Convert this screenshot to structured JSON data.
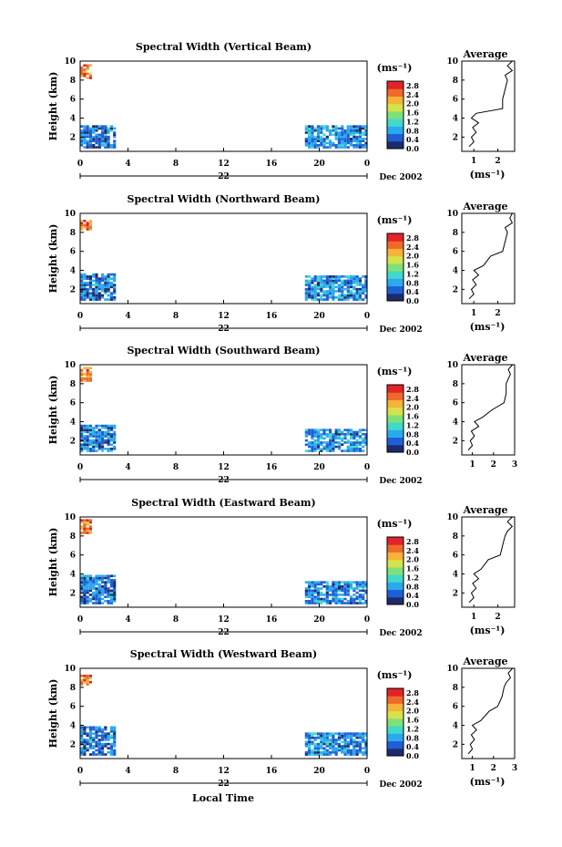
{
  "page": {
    "xlabel": "Local Time",
    "date_label": "Dec 2002",
    "day_label": "22",
    "ylabel": "Height (km)",
    "avg_title": "Average",
    "unit": "(ms⁻¹)"
  },
  "colorbar": {
    "ticks": [
      "2.8",
      "2.4",
      "2.0",
      "1.6",
      "1.2",
      "0.8",
      "0.4",
      "0.0"
    ],
    "colors": [
      "#1e2b6b",
      "#1f5fd6",
      "#2aa9ee",
      "#41d9c9",
      "#7fe07a",
      "#d6e24a",
      "#f5b33a",
      "#ef6a2a",
      "#e0242a"
    ]
  },
  "chart_data": [
    {
      "type": "heatmap",
      "title": "Spectral Width (Vertical Beam)",
      "xlabel": "Local Time",
      "ylabel": "Height (km)",
      "x_ticks": [
        "0",
        "4",
        "8",
        "12",
        "16",
        "20",
        "0"
      ],
      "y_ticks": [
        "2",
        "4",
        "6",
        "8",
        "10"
      ],
      "xlim": [
        0,
        24
      ],
      "ylim": [
        0.5,
        10
      ],
      "clim": [
        0.0,
        3.0
      ],
      "regions": [
        {
          "x": [
            0.0,
            3.0
          ],
          "y": [
            0.8,
            3.2
          ],
          "value": 0.6
        },
        {
          "x": [
            18.8,
            24.0
          ],
          "y": [
            0.8,
            3.2
          ],
          "value": 0.7
        },
        {
          "x": [
            0.0,
            0.8
          ],
          "y": [
            8.1,
            9.6
          ],
          "value": 2.4
        }
      ],
      "average": {
        "xlabel": "(ms⁻¹)",
        "x_ticks": [
          "1",
          "2"
        ],
        "xlim": [
          0.5,
          2.7
        ],
        "ylim": [
          0.5,
          10
        ],
        "profile": [
          [
            0.8,
            1
          ],
          [
            1.0,
            1.5
          ],
          [
            0.9,
            2
          ],
          [
            1.1,
            2.5
          ],
          [
            0.95,
            3
          ],
          [
            1.2,
            3.5
          ],
          [
            0.9,
            4
          ],
          [
            1.1,
            4.5
          ],
          [
            2.2,
            5
          ],
          [
            2.2,
            6
          ],
          [
            2.3,
            7
          ],
          [
            2.4,
            8
          ],
          [
            2.3,
            8.5
          ],
          [
            2.6,
            9
          ],
          [
            2.4,
            9.5
          ],
          [
            2.6,
            10
          ]
        ]
      }
    },
    {
      "type": "heatmap",
      "title": "Spectral Width (Northward Beam)",
      "xlabel": "Local Time",
      "ylabel": "Height (km)",
      "x_ticks": [
        "0",
        "4",
        "8",
        "12",
        "16",
        "20",
        "0"
      ],
      "y_ticks": [
        "2",
        "4",
        "6",
        "8",
        "10"
      ],
      "xlim": [
        0,
        24
      ],
      "ylim": [
        0.5,
        10
      ],
      "clim": [
        0.0,
        3.0
      ],
      "regions": [
        {
          "x": [
            0.0,
            3.0
          ],
          "y": [
            0.8,
            3.6
          ],
          "value": 0.6
        },
        {
          "x": [
            18.8,
            24.0
          ],
          "y": [
            0.8,
            3.4
          ],
          "value": 0.7
        },
        {
          "x": [
            0.0,
            0.9
          ],
          "y": [
            8.2,
            9.2
          ],
          "value": 2.4
        }
      ],
      "average": {
        "xlabel": "(ms⁻¹)",
        "x_ticks": [
          "1",
          "2"
        ],
        "xlim": [
          0.5,
          2.7
        ],
        "ylim": [
          0.5,
          10
        ],
        "profile": [
          [
            0.8,
            1
          ],
          [
            1.0,
            1.5
          ],
          [
            0.9,
            2
          ],
          [
            1.1,
            2.5
          ],
          [
            0.95,
            3
          ],
          [
            1.2,
            3.5
          ],
          [
            1.0,
            4
          ],
          [
            1.4,
            4.5
          ],
          [
            1.7,
            5.5
          ],
          [
            2.2,
            6
          ],
          [
            2.3,
            7
          ],
          [
            2.4,
            8
          ],
          [
            2.3,
            8.5
          ],
          [
            2.6,
            9
          ],
          [
            2.5,
            9.5
          ],
          [
            2.6,
            10
          ]
        ]
      }
    },
    {
      "type": "heatmap",
      "title": "Spectral Width (Southward Beam)",
      "xlabel": "Local Time",
      "ylabel": "Height (km)",
      "x_ticks": [
        "0",
        "4",
        "8",
        "12",
        "16",
        "20",
        "0"
      ],
      "y_ticks": [
        "2",
        "4",
        "6",
        "8",
        "10"
      ],
      "xlim": [
        0,
        24
      ],
      "ylim": [
        0.5,
        10
      ],
      "clim": [
        0.0,
        3.0
      ],
      "regions": [
        {
          "x": [
            0.0,
            3.0
          ],
          "y": [
            0.8,
            3.6
          ],
          "value": 0.6
        },
        {
          "x": [
            18.8,
            24.0
          ],
          "y": [
            0.8,
            3.2
          ],
          "value": 0.7
        },
        {
          "x": [
            0.0,
            0.8
          ],
          "y": [
            8.2,
            9.6
          ],
          "value": 2.4
        }
      ],
      "average": {
        "xlabel": "",
        "x_ticks": [
          "1",
          "2",
          "3"
        ],
        "xlim": [
          0.5,
          3.0
        ],
        "ylim": [
          0.5,
          10
        ],
        "profile": [
          [
            0.8,
            1
          ],
          [
            1.0,
            1.5
          ],
          [
            0.9,
            2
          ],
          [
            1.1,
            2.5
          ],
          [
            0.95,
            3
          ],
          [
            1.3,
            3.5
          ],
          [
            1.1,
            4
          ],
          [
            1.5,
            4.5
          ],
          [
            1.9,
            5.2
          ],
          [
            2.5,
            6
          ],
          [
            2.6,
            7
          ],
          [
            2.6,
            8
          ],
          [
            2.7,
            8.5
          ],
          [
            2.8,
            9
          ],
          [
            2.7,
            9.5
          ],
          [
            2.9,
            10
          ]
        ]
      }
    },
    {
      "type": "heatmap",
      "title": "Spectral Width (Eastward Beam)",
      "xlabel": "Local Time",
      "ylabel": "Height (km)",
      "x_ticks": [
        "0",
        "4",
        "8",
        "12",
        "16",
        "20",
        "0"
      ],
      "y_ticks": [
        "2",
        "4",
        "6",
        "8",
        "10"
      ],
      "xlim": [
        0,
        24
      ],
      "ylim": [
        0.5,
        10
      ],
      "clim": [
        0.0,
        3.0
      ],
      "regions": [
        {
          "x": [
            0.0,
            3.0
          ],
          "y": [
            0.8,
            3.8
          ],
          "value": 0.6
        },
        {
          "x": [
            18.8,
            24.0
          ],
          "y": [
            0.8,
            3.2
          ],
          "value": 0.7
        },
        {
          "x": [
            0.0,
            0.8
          ],
          "y": [
            8.2,
            9.6
          ],
          "value": 2.4
        }
      ],
      "average": {
        "xlabel": "(ms⁻¹)",
        "x_ticks": [
          "1",
          "2"
        ],
        "xlim": [
          0.5,
          2.7
        ],
        "ylim": [
          0.5,
          10
        ],
        "profile": [
          [
            0.8,
            1
          ],
          [
            1.0,
            1.5
          ],
          [
            0.9,
            2
          ],
          [
            1.1,
            2.5
          ],
          [
            0.95,
            3
          ],
          [
            1.2,
            3.5
          ],
          [
            1.0,
            4
          ],
          [
            1.3,
            4.5
          ],
          [
            1.6,
            5.5
          ],
          [
            2.1,
            6
          ],
          [
            2.2,
            7
          ],
          [
            2.3,
            8
          ],
          [
            2.4,
            8.5
          ],
          [
            2.6,
            9
          ],
          [
            2.4,
            9.5
          ],
          [
            2.6,
            10
          ]
        ]
      }
    },
    {
      "type": "heatmap",
      "title": "Spectral Width (Westward Beam)",
      "xlabel": "Local Time",
      "ylabel": "Height (km)",
      "x_ticks": [
        "0",
        "4",
        "8",
        "12",
        "16",
        "20",
        "0"
      ],
      "y_ticks": [
        "2",
        "4",
        "6",
        "8",
        "10"
      ],
      "xlim": [
        0,
        24
      ],
      "ylim": [
        0.5,
        10
      ],
      "clim": [
        0.0,
        3.0
      ],
      "regions": [
        {
          "x": [
            0.0,
            3.0
          ],
          "y": [
            0.8,
            3.8
          ],
          "value": 0.6
        },
        {
          "x": [
            18.8,
            24.0
          ],
          "y": [
            0.8,
            3.2
          ],
          "value": 0.7
        },
        {
          "x": [
            0.0,
            0.8
          ],
          "y": [
            8.2,
            9.2
          ],
          "value": 2.4
        }
      ],
      "average": {
        "xlabel": "(ms⁻¹)",
        "x_ticks": [
          "1",
          "2",
          "3"
        ],
        "xlim": [
          0.5,
          3.0
        ],
        "ylim": [
          0.5,
          10
        ],
        "profile": [
          [
            0.8,
            1
          ],
          [
            1.0,
            1.5
          ],
          [
            0.9,
            2
          ],
          [
            1.1,
            2.5
          ],
          [
            0.95,
            3
          ],
          [
            1.2,
            3.5
          ],
          [
            1.0,
            4
          ],
          [
            1.4,
            4.5
          ],
          [
            1.8,
            5.5
          ],
          [
            2.2,
            6
          ],
          [
            2.4,
            7
          ],
          [
            2.5,
            8
          ],
          [
            2.6,
            8.5
          ],
          [
            2.8,
            9
          ],
          [
            2.7,
            9.5
          ],
          [
            2.9,
            10
          ]
        ]
      }
    }
  ]
}
